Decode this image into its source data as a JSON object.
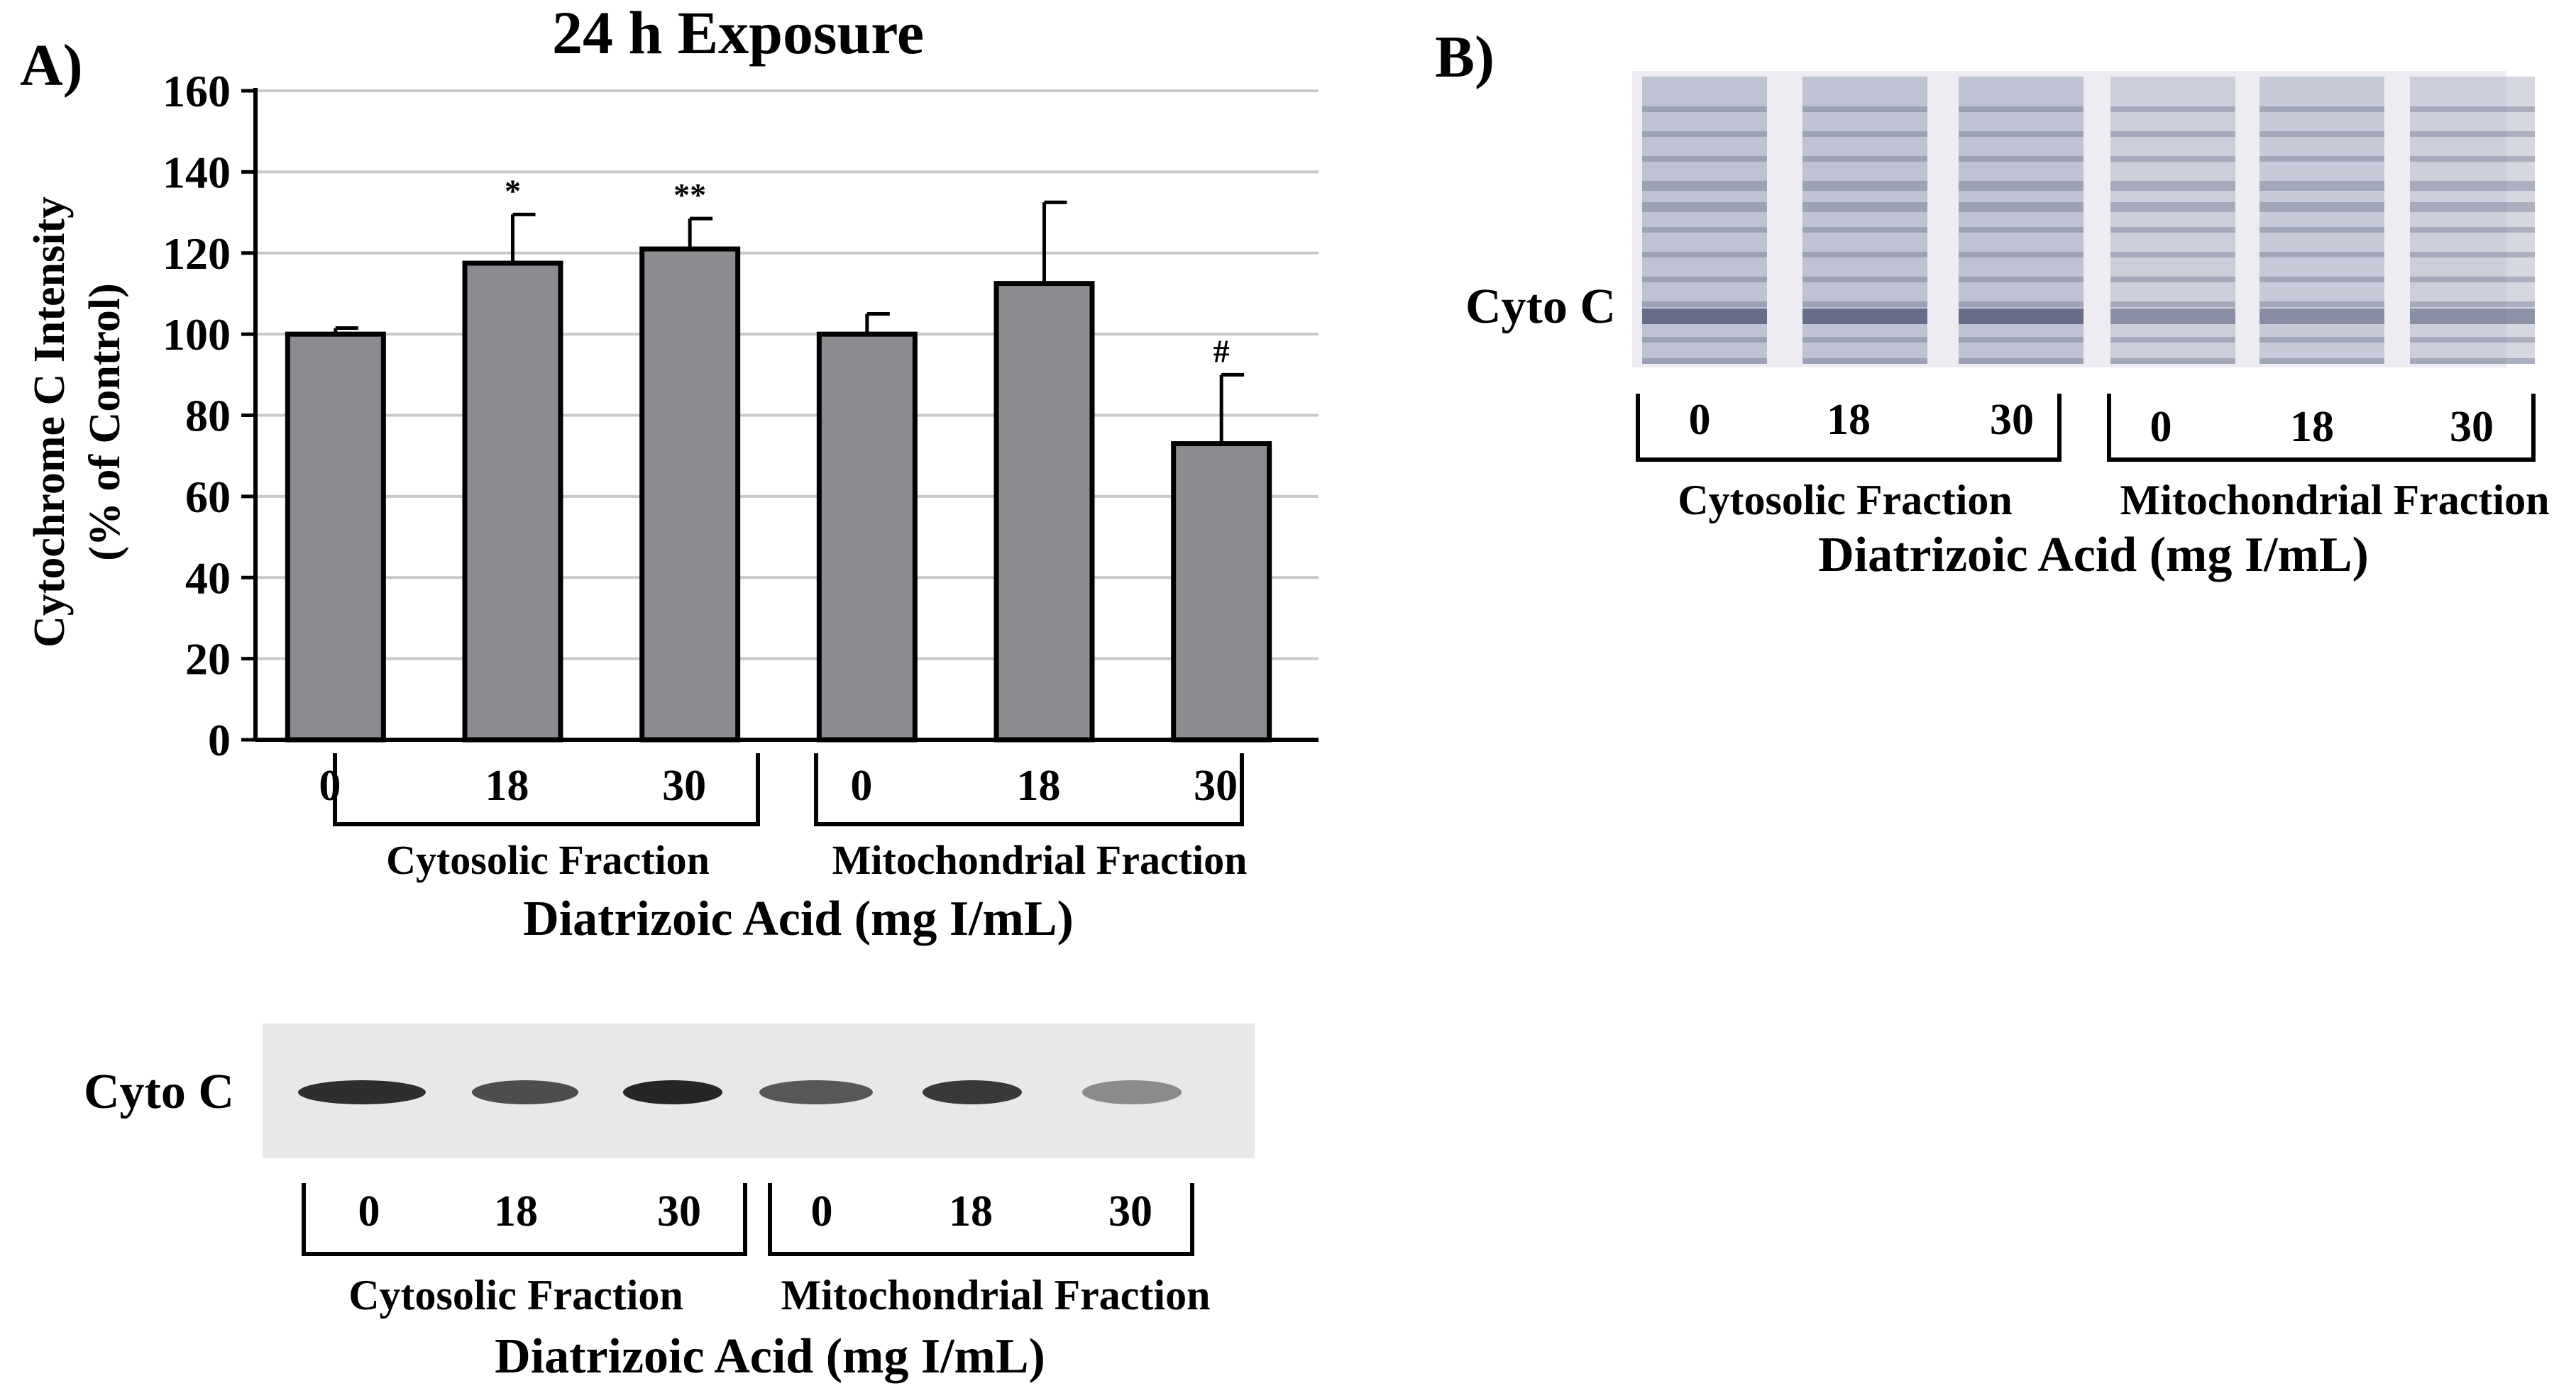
{
  "panel_a": {
    "label": "A)",
    "blot_label": "Cyto C",
    "blot_lanes": [
      "0",
      "18",
      "30",
      "0",
      "18",
      "30"
    ],
    "blot_groups": [
      "Cytosolic Fraction",
      "Mitochondrial Fraction"
    ],
    "blot_xlabel": "Diatrizoic Acid (mg I/mL)"
  },
  "panel_b": {
    "label": "B)",
    "blot_label": "Cyto C",
    "lanes": [
      "0",
      "18",
      "30",
      "0",
      "18",
      "30"
    ],
    "groups": [
      "Cytosolic Fraction",
      "Mitochondrial Fraction"
    ],
    "xlabel": "Diatrizoic Acid (mg I/mL)"
  },
  "chart_data": {
    "type": "bar",
    "title": "24 h Exposure",
    "ylabel_line1": "Cytochrome C Intensity",
    "ylabel_line2": "(% of Control)",
    "xlabel": "Diatrizoic Acid (mg I/mL)",
    "ylim": [
      0,
      160
    ],
    "yticks": [
      0,
      20,
      40,
      60,
      80,
      100,
      120,
      140,
      160
    ],
    "grid": true,
    "categories": [
      "0",
      "18",
      "30",
      "0",
      "18",
      "30"
    ],
    "groups": [
      "Cytosolic Fraction",
      "Mitochondrial Fraction"
    ],
    "values": [
      100,
      117.5,
      121,
      100,
      112.5,
      73
    ],
    "errors": [
      1.5,
      12,
      7.5,
      5,
      20,
      17
    ],
    "annotations": [
      "",
      "*",
      "**",
      "",
      "",
      "#"
    ],
    "bar_color": "#8c8c90"
  }
}
